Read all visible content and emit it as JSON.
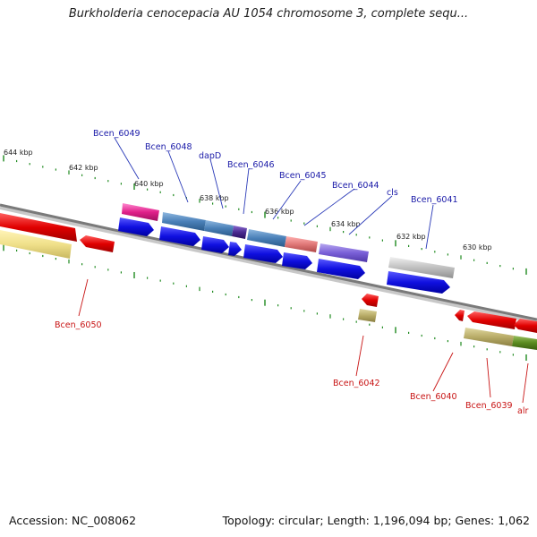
{
  "title": "Burkholderia cenocepacia AU 1054 chromosome 3, complete sequ...",
  "footer": {
    "accession": "Accession: NC_008062",
    "summary": "Topology: circular; Length: 1,196,094 bp; Genes: 1,062"
  },
  "scale_labels": {
    "outer": [
      "644 kbp",
      "642 kbp",
      "640 kbp",
      "638 kbp",
      "636 kbp",
      "634 kbp",
      "632 kbp",
      "630 kbp"
    ]
  },
  "gene_labels": {
    "forward": [
      "Bcen_6049",
      "Bcen_6048",
      "dapD",
      "Bcen_6046",
      "Bcen_6045",
      "Bcen_6044",
      "cls",
      "Bcen_6041"
    ],
    "reverse": [
      "Bcen_6050",
      "Bcen_6042",
      "Bcen_6040",
      "Bcen_6039",
      "alr"
    ]
  },
  "colors": {
    "forward_label": "#1a1aa8",
    "reverse_label": "#c81414",
    "tick": "#1f8a1f",
    "backbone": "#808080",
    "cds_forward": "#1010e0",
    "cds_reverse": "#e00000"
  }
}
